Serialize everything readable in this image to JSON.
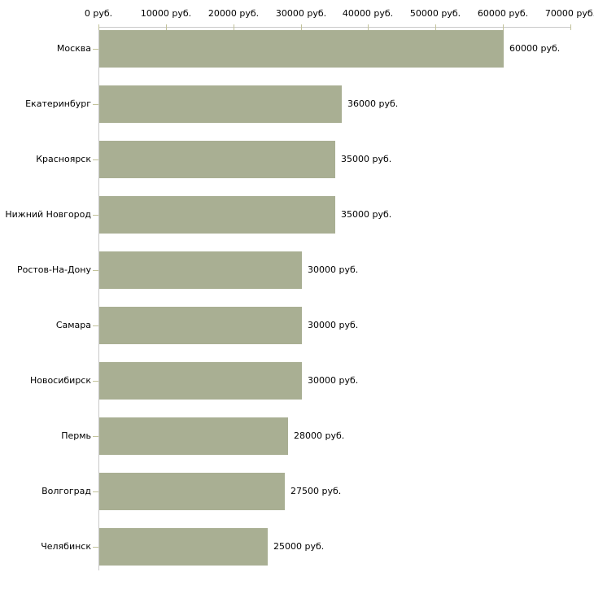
{
  "chart_data": {
    "type": "bar",
    "orientation": "horizontal",
    "title": "",
    "xlabel": "",
    "ylabel": "",
    "unit": "руб.",
    "xlim": [
      0,
      70000
    ],
    "grid": false,
    "legend": "none",
    "axis_position": "top",
    "categories": [
      "Москва",
      "Екатеринбург",
      "Красноярск",
      "Нижний Новгород",
      "Ростов-На-Дону",
      "Самара",
      "Новосибирск",
      "Пермь",
      "Волгоград",
      "Челябинск"
    ],
    "values": [
      60000,
      36000,
      35000,
      35000,
      30000,
      30000,
      30000,
      28000,
      27500,
      25000
    ],
    "value_labels": [
      "60000 руб.",
      "36000 руб.",
      "35000 руб.",
      "35000 руб.",
      "30000 руб.",
      "30000 руб.",
      "30000 руб.",
      "28000 руб.",
      "27500 руб.",
      "25000 руб."
    ],
    "x_tick_values": [
      0,
      10000,
      20000,
      30000,
      40000,
      50000,
      60000,
      70000
    ],
    "x_tick_labels": [
      "0 руб.",
      "10000 руб.",
      "20000 руб.",
      "30000 руб.",
      "40000 руб.",
      "50000 руб.",
      "60000 руб.",
      "70000 руб."
    ],
    "colors": {
      "bar": "#a9af93",
      "axis_line": "#c8c8c8",
      "tick": "#c2c29a",
      "text": "#000000",
      "background": "#ffffff"
    }
  }
}
